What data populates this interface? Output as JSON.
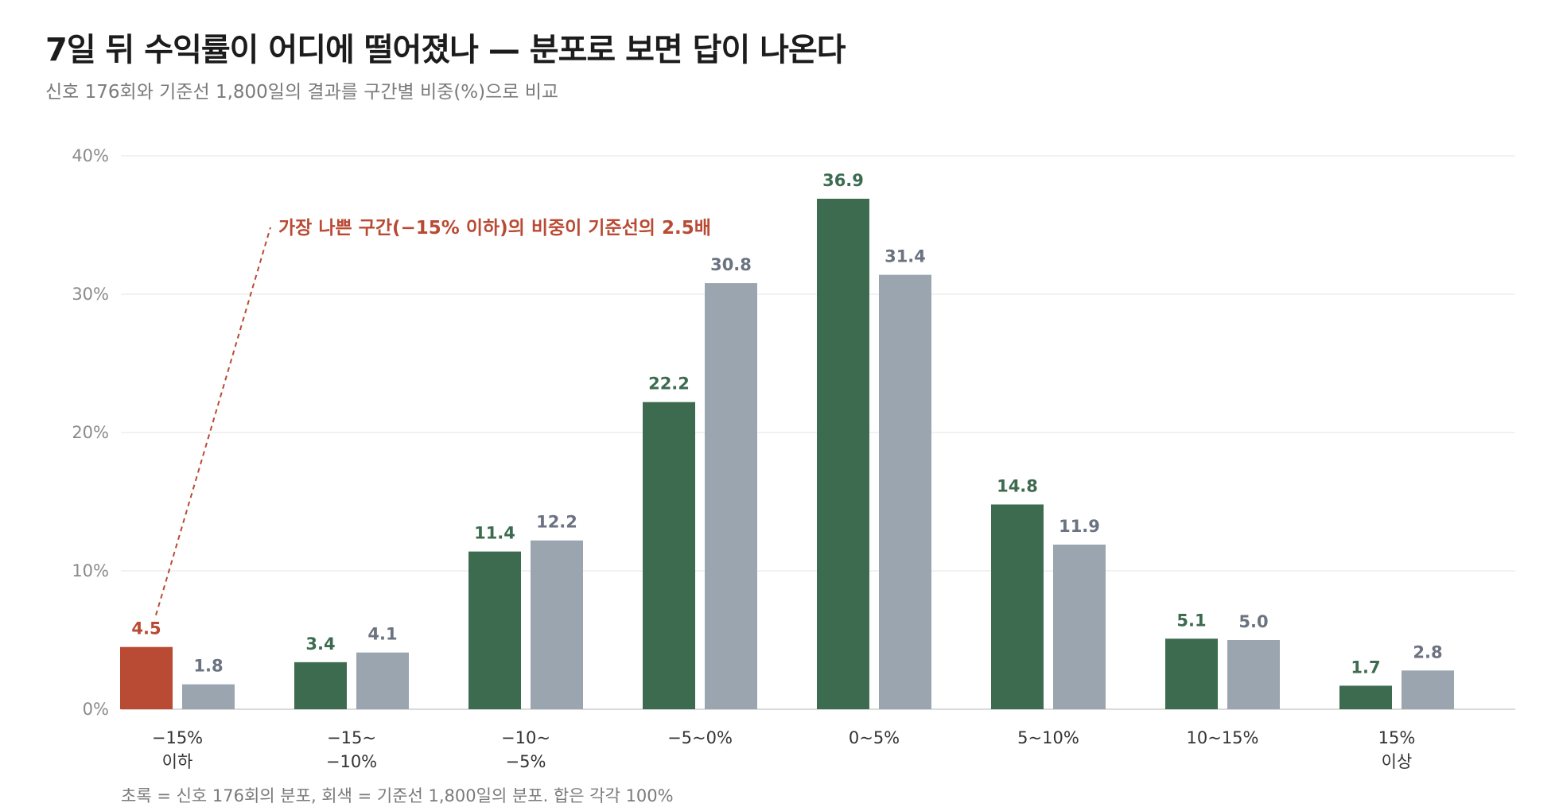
{
  "title": "7일 뒤 수익률이 어디에 떨어졌나 — 분포로 보면 답이 나온다",
  "subtitle": "신호 176회와 기준선 1,800일의 결과를 구간별 비중(%)으로 비교",
  "footnote": "초록 = 신호 176회의 분포, 회색 = 기준선 1,800일의 분포. 합은 각각 100%",
  "colors": {
    "signal": "#3d6b50",
    "baseline": "#9aa5b0",
    "highlight": "#b94a34",
    "baseline_label": "#6b7280"
  },
  "chart_data": {
    "type": "bar",
    "title": "7일 뒤 수익률이 어디에 떨어졌나 — 분포로 보면 답이 나온다",
    "subtitle": "신호 176회와 기준선 1,800일의 결과를 구간별 비중(%)으로 비교",
    "categories": [
      [
        "−15%",
        "이하"
      ],
      [
        "−15~",
        "−10%"
      ],
      [
        "−10~",
        "−5%"
      ],
      [
        "−5~0%"
      ],
      [
        "0~5%"
      ],
      [
        "5~10%"
      ],
      [
        "10~15%"
      ],
      [
        "15%",
        "이상"
      ]
    ],
    "series": [
      {
        "key": "signal",
        "values": [
          4.5,
          3.4,
          11.4,
          22.2,
          36.9,
          14.8,
          5.1,
          1.7
        ],
        "labels": [
          "4.5",
          "3.4",
          "11.4",
          "22.2",
          "36.9",
          "14.8",
          "5.1",
          "1.7"
        ]
      },
      {
        "key": "baseline",
        "values": [
          1.8,
          4.1,
          12.2,
          30.8,
          31.4,
          11.9,
          5.0,
          2.8
        ],
        "labels": [
          "1.8",
          "4.1",
          "12.2",
          "30.8",
          "31.4",
          "11.9",
          "5.0",
          "2.8"
        ]
      }
    ],
    "highlight": {
      "series": "signal",
      "index": 0
    },
    "ylim": [
      0,
      40
    ],
    "yticks": [
      0,
      10,
      20,
      30,
      40
    ],
    "ytick_labels": [
      "0%",
      "10%",
      "20%",
      "30%",
      "40%"
    ],
    "grid": true,
    "annotation": {
      "text": "가장 나쁜 구간(−15% 이하)의 비중이 기준선의 2.5배",
      "target": {
        "series": "signal",
        "index": 0
      }
    }
  }
}
